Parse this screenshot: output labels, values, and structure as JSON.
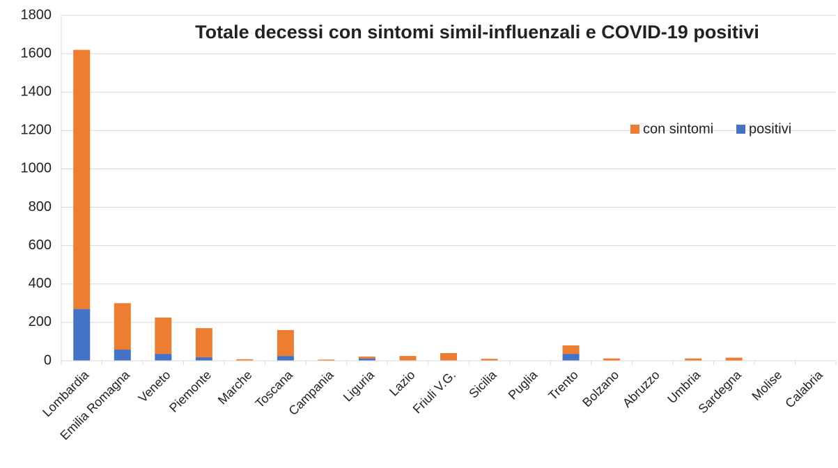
{
  "chart_data": {
    "type": "stacked_bar",
    "title": "Totale decessi con sintomi simil-influenzali e COVID-19 positivi",
    "categories": [
      "Lombardia",
      "Emilia Romagna",
      "Veneto",
      "Piemonte",
      "Marche",
      "Toscana",
      "Campania",
      "Liguria",
      "Lazio",
      "Friuli V.G.",
      "Sicilia",
      "Puglia",
      "Trento",
      "Bolzano",
      "Abruzzo",
      "Umbria",
      "Sardegna",
      "Molise",
      "Calabria"
    ],
    "series": [
      {
        "name": "positivi",
        "color": "#4472c4",
        "values": [
          270,
          58,
          36,
          18,
          2,
          25,
          1,
          12,
          1,
          2,
          1,
          0,
          36,
          0,
          0,
          0,
          1,
          0,
          0
        ]
      },
      {
        "name": "con sintomi",
        "color": "#ed7d31",
        "values": [
          1350,
          242,
          189,
          152,
          6,
          135,
          5,
          10,
          24,
          38,
          9,
          0,
          44,
          12,
          2,
          12,
          15,
          0,
          0
        ]
      }
    ],
    "legend_order": [
      "con sintomi",
      "positivi"
    ],
    "ylim": [
      0,
      1800
    ],
    "yticks": [
      0,
      200,
      400,
      600,
      800,
      1000,
      1200,
      1400,
      1600,
      1800
    ],
    "grid": true
  }
}
